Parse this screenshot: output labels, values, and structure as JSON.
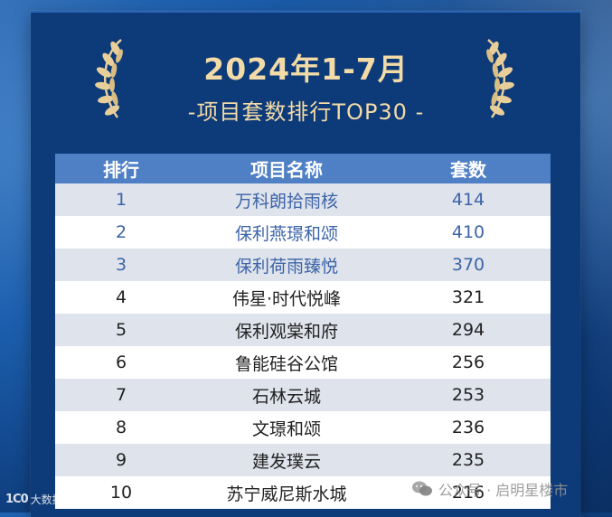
{
  "title": "2024年1-7月",
  "subtitle": "-项目套数排行TOP30 -",
  "table": {
    "headers": [
      "排行",
      "项目名称",
      "套数"
    ],
    "rows": [
      {
        "rank": "1",
        "name": "万科朗拾雨核",
        "count": "414"
      },
      {
        "rank": "2",
        "name": "保利燕璟和颂",
        "count": "410"
      },
      {
        "rank": "3",
        "name": "保利荷雨臻悦",
        "count": "370"
      },
      {
        "rank": "4",
        "name": "伟星·时代悦峰",
        "count": "321"
      },
      {
        "rank": "5",
        "name": "保利观棠和府",
        "count": "294"
      },
      {
        "rank": "6",
        "name": "鲁能硅谷公馆",
        "count": "256"
      },
      {
        "rank": "7",
        "name": "石林云城",
        "count": "253"
      },
      {
        "rank": "8",
        "name": "文璟和颂",
        "count": "236"
      },
      {
        "rank": "9",
        "name": "建发璞云",
        "count": "235"
      },
      {
        "rank": "10",
        "name": "苏宁威尼斯水城",
        "count": "216"
      }
    ]
  },
  "watermark_left": {
    "logo": "1C0",
    "text": "大数据眼"
  },
  "watermark_right": {
    "text": "公众号 · 启明星楼市"
  },
  "colors": {
    "panel": "#0d3a78",
    "gold": "#f3dba8",
    "header": "#4f80c6",
    "top3_text": "#3c64a8"
  },
  "icons": {
    "laurel": "laurel-wreath-icon",
    "wechat": "wechat-icon"
  }
}
